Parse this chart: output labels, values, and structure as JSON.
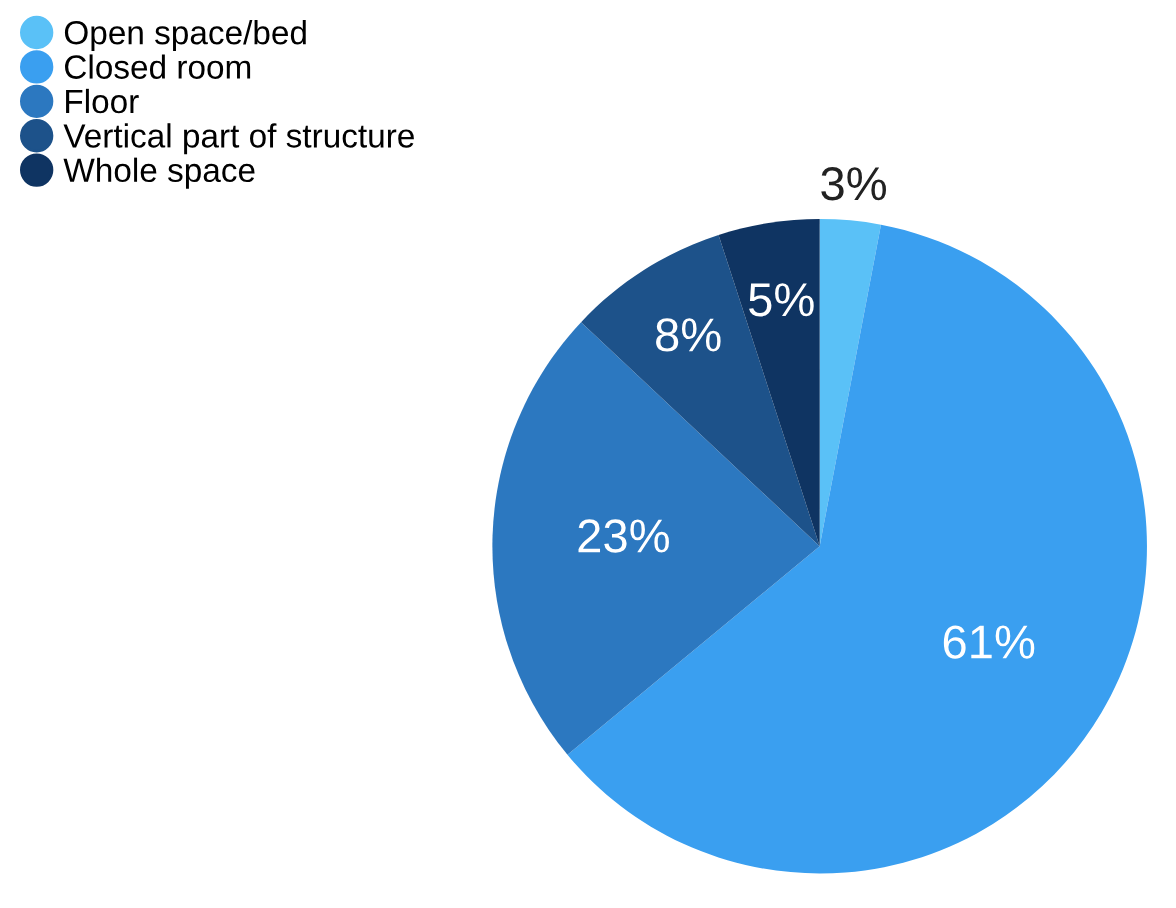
{
  "chart_data": {
    "type": "pie",
    "categories": [
      "Open space/bed",
      "Closed room",
      "Floor",
      "Vertical part of structure",
      "Whole space"
    ],
    "values": [
      3,
      61,
      23,
      8,
      5
    ],
    "value_labels": [
      "3%",
      "61%",
      "23%",
      "8%",
      "5%"
    ],
    "colors": [
      "#5ac1f7",
      "#3a9ff0",
      "#2c78c0",
      "#1d528a",
      "#0f3462"
    ],
    "legend": "top left"
  }
}
